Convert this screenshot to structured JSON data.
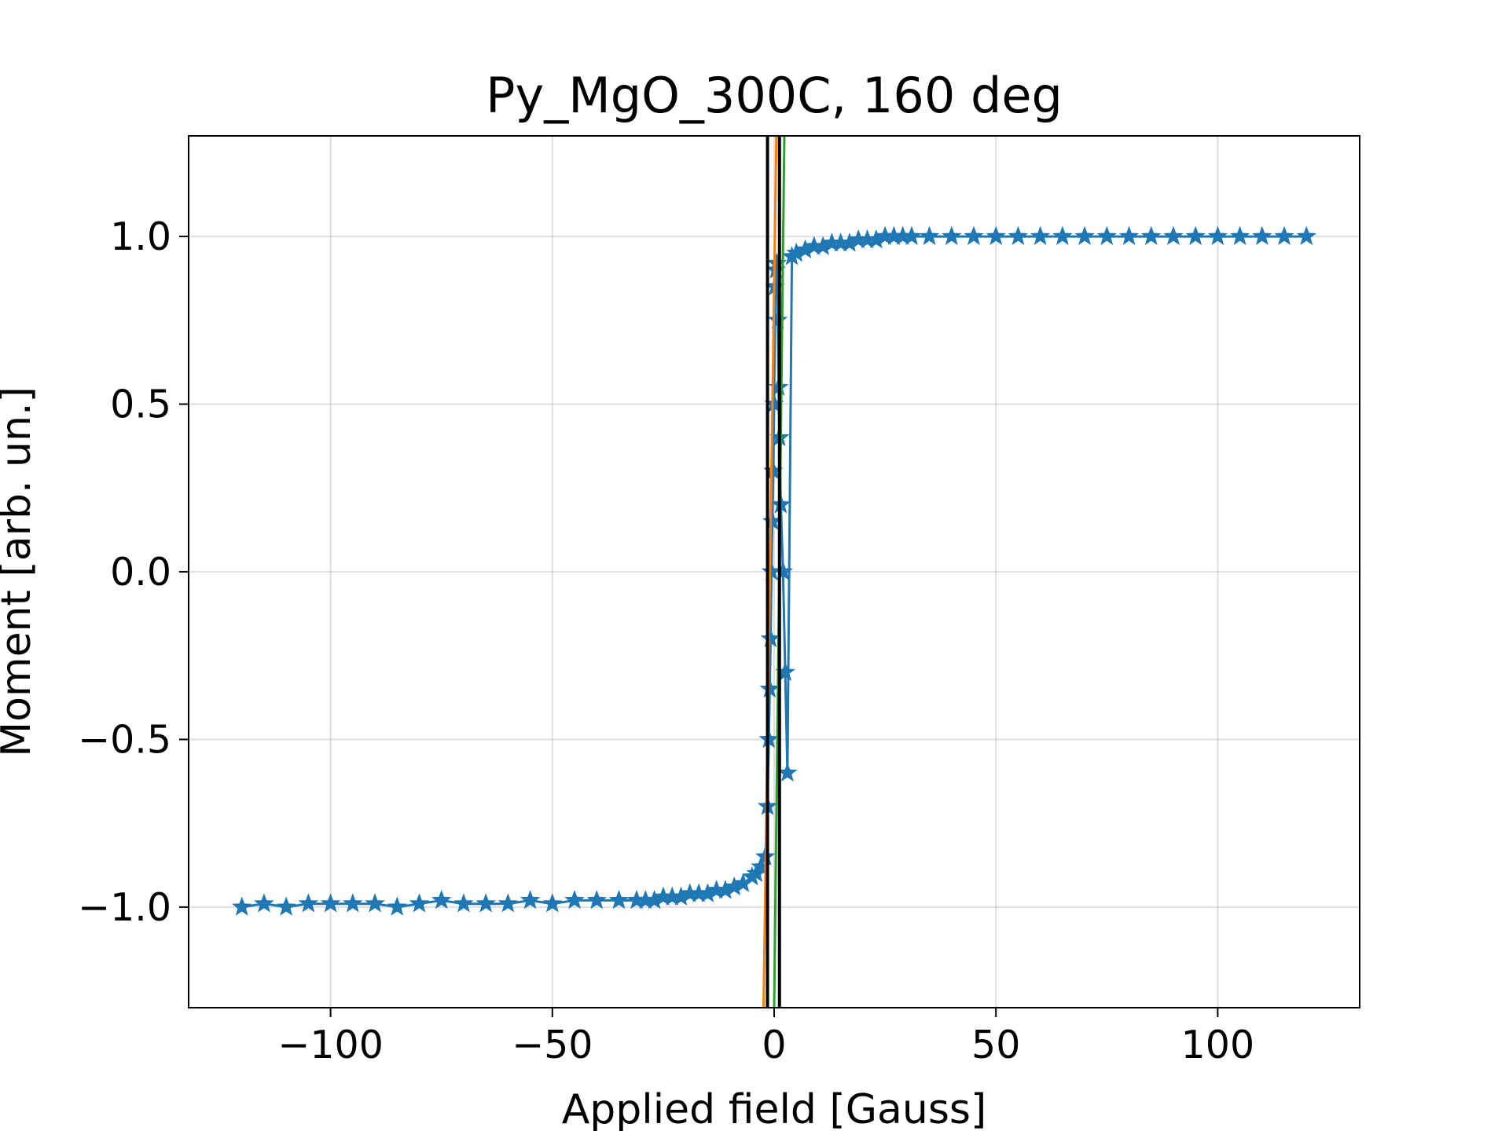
{
  "chart_data": {
    "type": "scatter",
    "title": "Py_MgO_300C, 160 deg",
    "xlabel": "Applied field [Gauss]",
    "ylabel": "Moment [arb. un.]",
    "xlim": [
      -132,
      132
    ],
    "ylim": [
      -1.3,
      1.3
    ],
    "grid": true,
    "xticks": [
      -100,
      -50,
      0,
      50,
      100
    ],
    "xtick_labels": [
      "−100",
      "−50",
      "0",
      "50",
      "100"
    ],
    "yticks": [
      -1.0,
      -0.5,
      0.0,
      0.5,
      1.0
    ],
    "ytick_labels": [
      "−1.0",
      "−0.5",
      "0.0",
      "0.5",
      "1.0"
    ],
    "series": [
      {
        "color": "#1f77b4",
        "marker": "star",
        "x": [
          -120,
          -115,
          -110,
          -105,
          -100,
          -95,
          -90,
          -85,
          -80,
          -75,
          -70,
          -65,
          -60,
          -55,
          -50,
          -45,
          -40,
          -35,
          -31,
          -29,
          -27,
          -25,
          -23,
          -21,
          -19,
          -17,
          -15,
          -13,
          -11,
          -9,
          -7,
          -5,
          -4,
          -3,
          -2,
          -1.5,
          -1.2,
          -1,
          -0.8,
          -0.6,
          -0.4,
          -0.2,
          0,
          0.2,
          0.4,
          0.6,
          0.8,
          1,
          1.2,
          1.5,
          2,
          2.5,
          3,
          4,
          5,
          7,
          9,
          11,
          13,
          15,
          17,
          19,
          21,
          23,
          25,
          27,
          29,
          31,
          35,
          40,
          45,
          50,
          55,
          60,
          65,
          70,
          75,
          80,
          85,
          90,
          95,
          100,
          105,
          110,
          115,
          120
        ],
        "y": [
          -1.0,
          -0.99,
          -1.0,
          -0.99,
          -0.99,
          -0.99,
          -0.99,
          -1.0,
          -0.99,
          -0.98,
          -0.99,
          -0.99,
          -0.99,
          -0.98,
          -0.99,
          -0.98,
          -0.98,
          -0.98,
          -0.98,
          -0.98,
          -0.98,
          -0.97,
          -0.97,
          -0.97,
          -0.96,
          -0.96,
          -0.96,
          -0.95,
          -0.95,
          -0.94,
          -0.93,
          -0.91,
          -0.9,
          -0.88,
          -0.85,
          -0.7,
          -0.5,
          -0.35,
          -0.2,
          0.0,
          0.15,
          0.3,
          0.5,
          0.85,
          0.9,
          0.92,
          0.75,
          0.55,
          0.4,
          0.2,
          0.0,
          -0.3,
          -0.6,
          0.94,
          0.95,
          0.96,
          0.97,
          0.97,
          0.98,
          0.98,
          0.98,
          0.99,
          0.99,
          0.99,
          1.0,
          1.0,
          1.0,
          1.0,
          1.0,
          1.0,
          1.0,
          1.0,
          1.0,
          1.0,
          1.0,
          1.0,
          1.0,
          1.0,
          1.0,
          1.0,
          1.0,
          1.0,
          1.0,
          1.0,
          1.0,
          1.0
        ]
      },
      {
        "color": "#ff7f0e",
        "type": "line",
        "x": [
          -2.4,
          0.5
        ],
        "y": [
          -1.3,
          1.3
        ]
      },
      {
        "color": "#2ca02c",
        "type": "line",
        "x": [
          0.0,
          2.3
        ],
        "y": [
          -1.3,
          1.3
        ]
      },
      {
        "color": "#000000",
        "type": "vline",
        "x": [
          -1.5,
          1.2
        ]
      }
    ]
  }
}
